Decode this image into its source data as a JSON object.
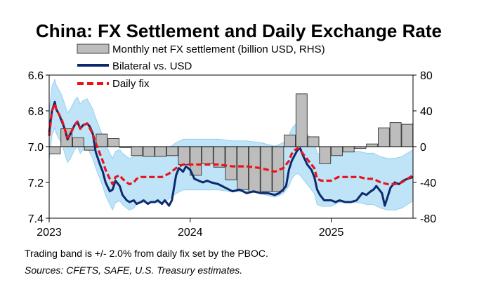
{
  "chart_data": {
    "type": "bar+line",
    "title": "China: FX Settlement and Daily Exchange Rate",
    "legend": [
      {
        "key": "settlement",
        "label": "Monthly net FX settlement (billion USD, RHS)"
      },
      {
        "key": "bilateral",
        "label": "Bilateral vs. USD"
      },
      {
        "key": "fix",
        "label": "Daily fix"
      }
    ],
    "left_axis": {
      "min": 6.6,
      "max": 7.4,
      "inverted": true,
      "ticks": [
        "6.6",
        "6.8",
        "7.0",
        "7.2",
        "7.4"
      ]
    },
    "right_axis": {
      "min": -80,
      "max": 80,
      "ticks": [
        "80",
        "40",
        "0",
        "-40",
        "-80"
      ]
    },
    "x_axis": {
      "start": 2023.0,
      "end": 2025.58,
      "ticks": [
        "2023",
        "2024",
        "2025"
      ]
    },
    "settlement_bars": [
      {
        "month": "2023-01",
        "value": -8
      },
      {
        "month": "2023-02",
        "value": 20
      },
      {
        "month": "2023-03",
        "value": 10
      },
      {
        "month": "2023-04",
        "value": -4
      },
      {
        "month": "2023-05",
        "value": 14
      },
      {
        "month": "2023-06",
        "value": 9
      },
      {
        "month": "2023-07",
        "value": -1
      },
      {
        "month": "2023-08",
        "value": -10
      },
      {
        "month": "2023-09",
        "value": -11
      },
      {
        "month": "2023-10",
        "value": -11
      },
      {
        "month": "2023-11",
        "value": -10
      },
      {
        "month": "2023-12",
        "value": -20
      },
      {
        "month": "2024-01",
        "value": -32
      },
      {
        "month": "2024-02",
        "value": -19
      },
      {
        "month": "2024-03",
        "value": -23
      },
      {
        "month": "2024-04",
        "value": -37
      },
      {
        "month": "2024-05",
        "value": -48
      },
      {
        "month": "2024-06",
        "value": -51
      },
      {
        "month": "2024-07",
        "value": -50
      },
      {
        "month": "2024-08",
        "value": -50
      },
      {
        "month": "2024-09",
        "value": 13
      },
      {
        "month": "2024-10",
        "value": 59
      },
      {
        "month": "2024-11",
        "value": 11
      },
      {
        "month": "2024-12",
        "value": -19
      },
      {
        "month": "2025-01",
        "value": -10
      },
      {
        "month": "2025-02",
        "value": -6
      },
      {
        "month": "2025-03",
        "value": -2
      },
      {
        "month": "2025-04",
        "value": 3
      },
      {
        "month": "2025-05",
        "value": 21
      },
      {
        "month": "2025-06",
        "value": 27
      },
      {
        "month": "2025-07",
        "value": 25
      }
    ],
    "bilateral": {
      "x": [
        2023.0,
        2023.02,
        2023.04,
        2023.05,
        2023.07,
        2023.09,
        2023.11,
        2023.13,
        2023.15,
        2023.18,
        2023.2,
        2023.22,
        2023.24,
        2023.27,
        2023.29,
        2023.31,
        2023.33,
        2023.36,
        2023.38,
        2023.4,
        2023.43,
        2023.45,
        2023.47,
        2023.5,
        2023.52,
        2023.55,
        2023.57,
        2023.6,
        2023.62,
        2023.65,
        2023.67,
        2023.7,
        2023.72,
        2023.75,
        2023.77,
        2023.8,
        2023.82,
        2023.85,
        2023.87,
        2023.9,
        2023.92,
        2023.95,
        2023.97,
        2024.0,
        2024.03,
        2024.06,
        2024.09,
        2024.12,
        2024.15,
        2024.2,
        2024.25,
        2024.3,
        2024.35,
        2024.4,
        2024.45,
        2024.5,
        2024.55,
        2024.6,
        2024.63,
        2024.66,
        2024.68,
        2024.7,
        2024.72,
        2024.74,
        2024.76,
        2024.78,
        2024.8,
        2024.83,
        2024.86,
        2024.88,
        2024.9,
        2024.92,
        2024.95,
        2024.97,
        2025.0,
        2025.03,
        2025.06,
        2025.1,
        2025.14,
        2025.18,
        2025.22,
        2025.25,
        2025.28,
        2025.3,
        2025.32,
        2025.34,
        2025.36,
        2025.38,
        2025.4,
        2025.42,
        2025.45,
        2025.48,
        2025.51,
        2025.54,
        2025.58
      ],
      "values": [
        6.92,
        6.8,
        6.75,
        6.79,
        6.82,
        6.86,
        6.9,
        6.96,
        6.93,
        6.88,
        6.86,
        6.9,
        6.88,
        6.87,
        6.89,
        6.93,
        7.03,
        7.1,
        7.14,
        7.2,
        7.25,
        7.24,
        7.19,
        7.22,
        7.27,
        7.3,
        7.31,
        7.3,
        7.32,
        7.31,
        7.3,
        7.32,
        7.31,
        7.31,
        7.3,
        7.32,
        7.3,
        7.33,
        7.3,
        7.16,
        7.12,
        7.14,
        7.11,
        7.13,
        7.18,
        7.19,
        7.2,
        7.19,
        7.2,
        7.21,
        7.23,
        7.25,
        7.24,
        7.26,
        7.25,
        7.26,
        7.26,
        7.27,
        7.26,
        7.24,
        7.22,
        7.13,
        7.08,
        7.05,
        7.02,
        7.01,
        7.05,
        7.1,
        7.13,
        7.17,
        7.24,
        7.27,
        7.3,
        7.3,
        7.3,
        7.31,
        7.3,
        7.31,
        7.31,
        7.3,
        7.26,
        7.27,
        7.25,
        7.24,
        7.22,
        7.24,
        7.26,
        7.33,
        7.28,
        7.23,
        7.2,
        7.21,
        7.19,
        7.18,
        7.17
      ]
    },
    "fix": {
      "x": [
        2023.0,
        2023.02,
        2023.04,
        2023.05,
        2023.07,
        2023.09,
        2023.11,
        2023.13,
        2023.15,
        2023.18,
        2023.2,
        2023.22,
        2023.24,
        2023.27,
        2023.29,
        2023.31,
        2023.33,
        2023.36,
        2023.38,
        2023.4,
        2023.43,
        2023.45,
        2023.47,
        2023.5,
        2023.52,
        2023.55,
        2023.57,
        2023.6,
        2023.62,
        2023.65,
        2023.7,
        2023.75,
        2023.8,
        2023.85,
        2023.9,
        2023.95,
        2024.0,
        2024.1,
        2024.2,
        2024.3,
        2024.4,
        2024.5,
        2024.55,
        2024.6,
        2024.63,
        2024.66,
        2024.68,
        2024.7,
        2024.72,
        2024.74,
        2024.76,
        2024.78,
        2024.8,
        2024.83,
        2024.86,
        2024.88,
        2024.9,
        2024.93,
        2024.96,
        2025.0,
        2025.05,
        2025.1,
        2025.15,
        2025.2,
        2025.25,
        2025.3,
        2025.35,
        2025.4,
        2025.45,
        2025.5,
        2025.54,
        2025.58
      ],
      "values": [
        6.94,
        6.8,
        6.76,
        6.79,
        6.82,
        6.85,
        6.9,
        6.95,
        6.93,
        6.88,
        6.86,
        6.9,
        6.88,
        6.87,
        6.9,
        6.93,
        6.98,
        7.04,
        7.08,
        7.13,
        7.18,
        7.21,
        7.17,
        7.16,
        7.18,
        7.2,
        7.21,
        7.2,
        7.18,
        7.17,
        7.17,
        7.17,
        7.17,
        7.15,
        7.12,
        7.1,
        7.1,
        7.1,
        7.1,
        7.11,
        7.11,
        7.12,
        7.13,
        7.14,
        7.13,
        7.12,
        7.1,
        7.08,
        7.04,
        7.02,
        7.01,
        7.02,
        7.04,
        7.07,
        7.1,
        7.12,
        7.18,
        7.19,
        7.19,
        7.19,
        7.17,
        7.17,
        7.17,
        7.17,
        7.18,
        7.18,
        7.2,
        7.21,
        7.21,
        7.2,
        7.18,
        7.16
      ]
    },
    "trading_band_pct": 2.0,
    "footnote": "Trading band is +/- 2.0% from daily fix set by the PBOC.",
    "source": "Sources: CFETS, SAFE, U.S. Treasury estimates."
  },
  "colors": {
    "bilateral": "#0d2a6e",
    "fix": "#e8141b",
    "band": "#bfe3f7",
    "band_edge": "#8ccbef",
    "bar_fill": "#bdbdbd",
    "bar_stroke": "#404040"
  }
}
